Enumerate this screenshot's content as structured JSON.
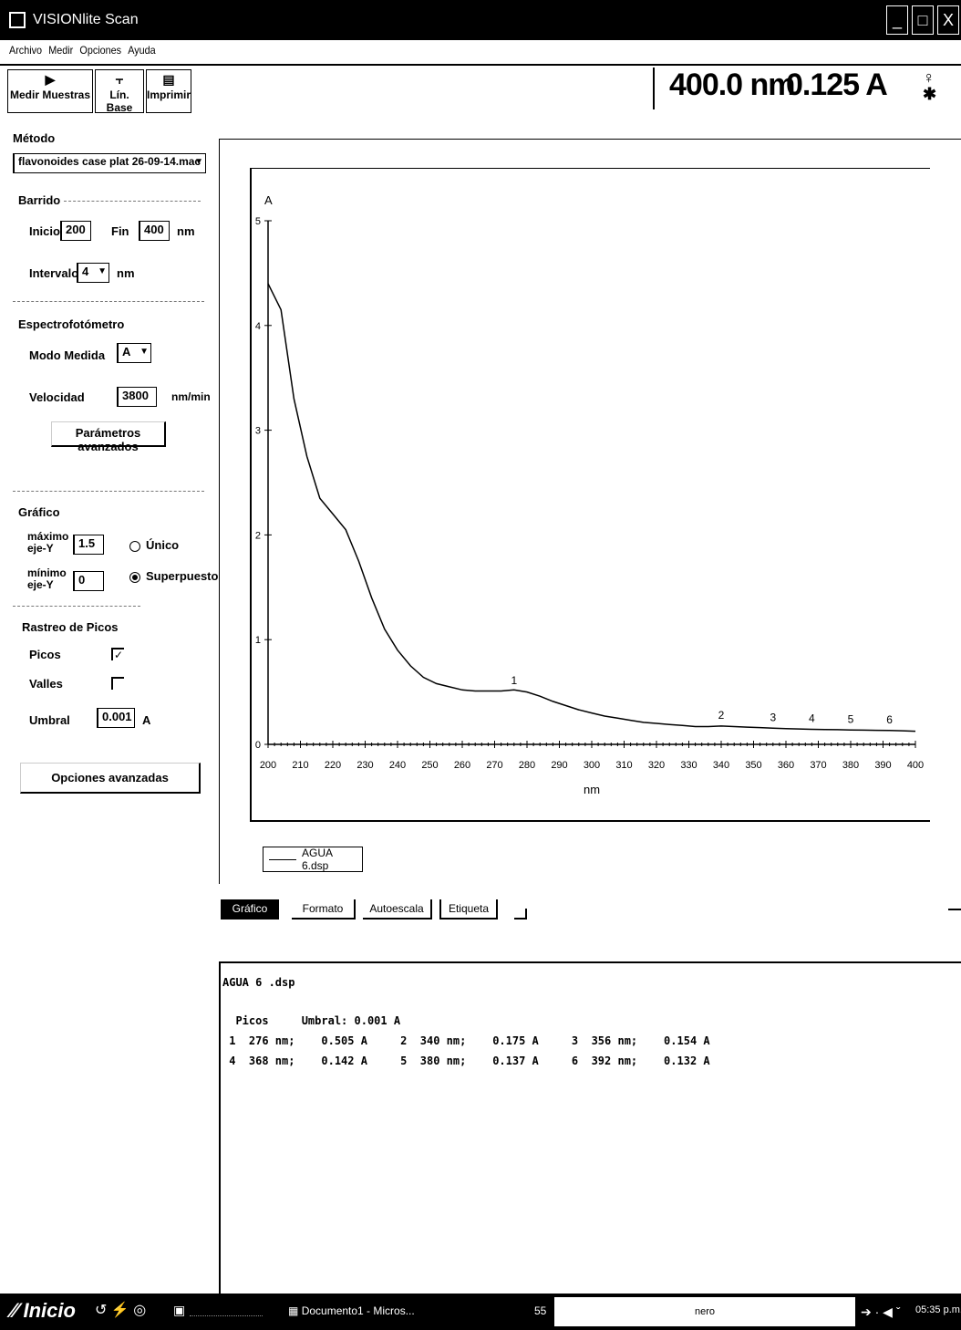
{
  "window": {
    "title": "VISIONlite Scan",
    "min": "_",
    "max": "□",
    "close": "X"
  },
  "menu": [
    "Archivo",
    "Medir",
    "Opciones",
    "Ayuda"
  ],
  "toolbar": {
    "measure": "Medir Muestras",
    "baseline": "Lín. Base",
    "print": "Imprimir"
  },
  "readout": {
    "wavelength": "400.0 nm",
    "absorbance": "0.125 A"
  },
  "left": {
    "metodo_label": "Método",
    "metodo_value": "flavonoides case plat 26-09-14.mac",
    "barrido_label": "Barrido",
    "inicio_label": "Inicio",
    "inicio_value": "200",
    "fin_label": "Fin",
    "fin_value": "400",
    "fin_unit": "nm",
    "intervalo_label": "Intervalo",
    "intervalo_value": "4",
    "intervalo_unit": "nm",
    "espectro_label": "Espectrofotómetro",
    "modo_label": "Modo Medida",
    "modo_value": "A",
    "velocidad_label": "Velocidad",
    "velocidad_value": "3800",
    "velocidad_unit": "nm/min",
    "param_button": "Parámetros avanzados",
    "grafico_label": "Gráfico",
    "maxy_label": "máximo eje-Y",
    "maxy_value": "1.5",
    "miny_label": "mínimo eje-Y",
    "miny_value": "0",
    "unico_label": "Único",
    "superpuesto_label": "Superpuesto",
    "rastreo_label": "Rastreo de Picos",
    "picos_label": "Picos",
    "valles_label": "Valles",
    "umbral_label": "Umbral",
    "umbral_value": "0.001",
    "umbral_unit": "A",
    "opciones_button": "Opciones avanzadas"
  },
  "tabs": [
    "Gráfico",
    "Formato",
    "Autoescala",
    "Etiqueta"
  ],
  "legend": "AGUA 6.dsp",
  "chart_data": {
    "type": "line",
    "xlabel": "nm",
    "ylabel": "A",
    "xlim": [
      200,
      400
    ],
    "ylim": [
      0,
      5
    ],
    "xticks": [
      200,
      210,
      220,
      230,
      240,
      250,
      260,
      270,
      280,
      290,
      300,
      310,
      320,
      330,
      340,
      350,
      360,
      370,
      380,
      390,
      400
    ],
    "yticks": [
      0,
      1,
      2,
      3,
      4,
      5
    ],
    "series": [
      {
        "name": "AGUA 6.dsp",
        "x": [
          200,
          204,
          208,
          212,
          216,
          220,
          224,
          228,
          232,
          236,
          240,
          244,
          248,
          252,
          256,
          260,
          264,
          268,
          272,
          276,
          280,
          284,
          288,
          292,
          296,
          300,
          304,
          308,
          312,
          316,
          320,
          324,
          328,
          332,
          336,
          340,
          344,
          348,
          352,
          356,
          360,
          364,
          368,
          372,
          376,
          380,
          384,
          388,
          392,
          396,
          400
        ],
        "y": [
          4.4,
          4.15,
          3.3,
          2.75,
          2.35,
          2.2,
          2.05,
          1.75,
          1.4,
          1.1,
          0.9,
          0.75,
          0.64,
          0.58,
          0.55,
          0.52,
          0.51,
          0.51,
          0.51,
          0.52,
          0.5,
          0.46,
          0.41,
          0.37,
          0.33,
          0.3,
          0.27,
          0.25,
          0.23,
          0.21,
          0.2,
          0.19,
          0.18,
          0.17,
          0.17,
          0.175,
          0.17,
          0.165,
          0.16,
          0.154,
          0.15,
          0.147,
          0.144,
          0.142,
          0.14,
          0.137,
          0.136,
          0.134,
          0.132,
          0.13,
          0.125
        ]
      }
    ],
    "peak_labels": [
      {
        "label": "1",
        "x": 276,
        "y": 0.505
      },
      {
        "label": "2",
        "x": 340,
        "y": 0.175
      },
      {
        "label": "3",
        "x": 356,
        "y": 0.154
      },
      {
        "label": "4",
        "x": 368,
        "y": 0.142
      },
      {
        "label": "5",
        "x": 380,
        "y": 0.137
      },
      {
        "label": "6",
        "x": 392,
        "y": 0.132
      }
    ]
  },
  "report": {
    "file": "AGUA 6 .dsp",
    "header": "  Picos     Umbral: 0.001 A",
    "rows": [
      " 1  276 nm;    0.505 A     2  340 nm;    0.175 A     3  356 nm;    0.154 A",
      " 4  368 nm;    0.142 A     5  380 nm;    0.137 A     6  392 nm;    0.132 A"
    ]
  },
  "taskbar": {
    "start": "Inicio",
    "item1": "Documento1 - Micros...",
    "count": "55",
    "nero": "nero",
    "clock": "05:35 p.m."
  }
}
